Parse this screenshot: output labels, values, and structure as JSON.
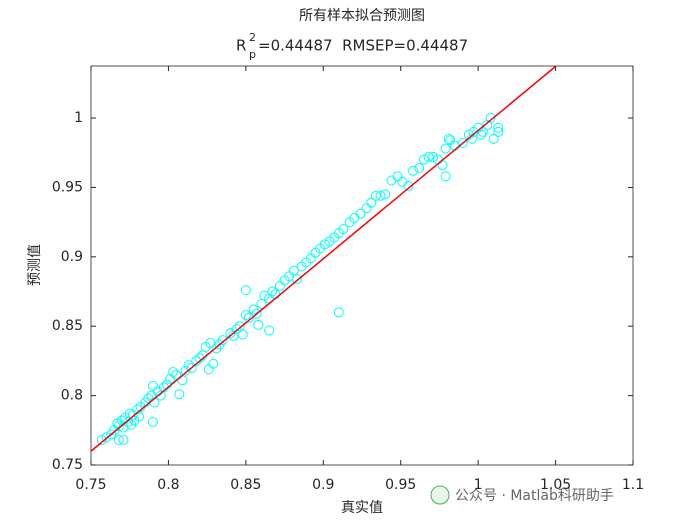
{
  "chart_data": {
    "type": "scatter",
    "title": "所有样本拟合预测图",
    "subtitle": {
      "symbol": "R",
      "sup": "2",
      "sub": "p",
      "text": "=0.44487  RMSEP=0.44487"
    },
    "x_label": "真实值",
    "y_label": "预测值",
    "watermark": "公众号 · Matlab科研助手",
    "xlim": [
      0.75,
      1.1
    ],
    "xticks": [
      0.75,
      0.8,
      0.85,
      0.9,
      0.95,
      1,
      1.05,
      1.1
    ],
    "ylim": [
      0.75,
      1.0375
    ],
    "yticks": [
      0.75,
      0.8,
      0.85,
      0.9,
      0.95,
      1
    ],
    "color": "#00ffff",
    "x": [
      0.757,
      0.76,
      0.763,
      0.765,
      0.767,
      0.768,
      0.77,
      0.771,
      0.772,
      0.774,
      0.775,
      0.776,
      0.777,
      0.778,
      0.78,
      0.781,
      0.782,
      0.785,
      0.787,
      0.789,
      0.79,
      0.791,
      0.793,
      0.795,
      0.797,
      0.799,
      0.801,
      0.803,
      0.805,
      0.807,
      0.809,
      0.811,
      0.813,
      0.815,
      0.818,
      0.82,
      0.822,
      0.824,
      0.826,
      0.827,
      0.829,
      0.831,
      0.833,
      0.835,
      0.84,
      0.842,
      0.844,
      0.846,
      0.848,
      0.85,
      0.852,
      0.855,
      0.857,
      0.858,
      0.86,
      0.862,
      0.865,
      0.867,
      0.869,
      0.872,
      0.875,
      0.878,
      0.881,
      0.883,
      0.886,
      0.889,
      0.892,
      0.895,
      0.898,
      0.901,
      0.904,
      0.907,
      0.91,
      0.913,
      0.917,
      0.92,
      0.924,
      0.928,
      0.931,
      0.934,
      0.937,
      0.94,
      0.944,
      0.948,
      0.951,
      0.955,
      0.958,
      0.962,
      0.965,
      0.968,
      0.971,
      0.974,
      0.977,
      0.979,
      0.981,
      0.985,
      0.99,
      0.994,
      0.997,
      1.0,
      1.003,
      1.006,
      1.008,
      1.01,
      1.013,
      1.013,
      1.002,
      0.996,
      0.982,
      0.91,
      0.85,
      0.865,
      0.79,
      0.768,
      0.771,
      0.979
    ],
    "values": [
      0.768,
      0.77,
      0.772,
      0.775,
      0.78,
      0.778,
      0.782,
      0.777,
      0.784,
      0.781,
      0.787,
      0.779,
      0.786,
      0.782,
      0.79,
      0.785,
      0.792,
      0.795,
      0.798,
      0.8,
      0.807,
      0.795,
      0.803,
      0.8,
      0.806,
      0.808,
      0.812,
      0.817,
      0.815,
      0.801,
      0.811,
      0.818,
      0.822,
      0.82,
      0.825,
      0.827,
      0.829,
      0.835,
      0.819,
      0.838,
      0.823,
      0.834,
      0.837,
      0.84,
      0.845,
      0.843,
      0.848,
      0.85,
      0.844,
      0.858,
      0.856,
      0.862,
      0.859,
      0.851,
      0.866,
      0.872,
      0.87,
      0.875,
      0.873,
      0.879,
      0.883,
      0.886,
      0.89,
      0.884,
      0.893,
      0.896,
      0.899,
      0.903,
      0.906,
      0.909,
      0.911,
      0.914,
      0.917,
      0.92,
      0.925,
      0.928,
      0.931,
      0.935,
      0.939,
      0.944,
      0.944,
      0.945,
      0.955,
      0.958,
      0.954,
      0.951,
      0.962,
      0.964,
      0.97,
      0.972,
      0.972,
      0.97,
      0.966,
      0.978,
      0.985,
      0.98,
      0.982,
      0.988,
      0.99,
      0.993,
      0.99,
      0.995,
      1.0,
      0.985,
      0.99,
      0.993,
      0.988,
      0.985,
      0.984,
      0.86,
      0.876,
      0.847,
      0.781,
      0.768,
      0.768,
      0.958
    ],
    "fit_line": {
      "color": "#ff0000",
      "x": [
        0.75,
        1.0503
      ],
      "y": [
        0.76,
        1.0375
      ]
    }
  }
}
